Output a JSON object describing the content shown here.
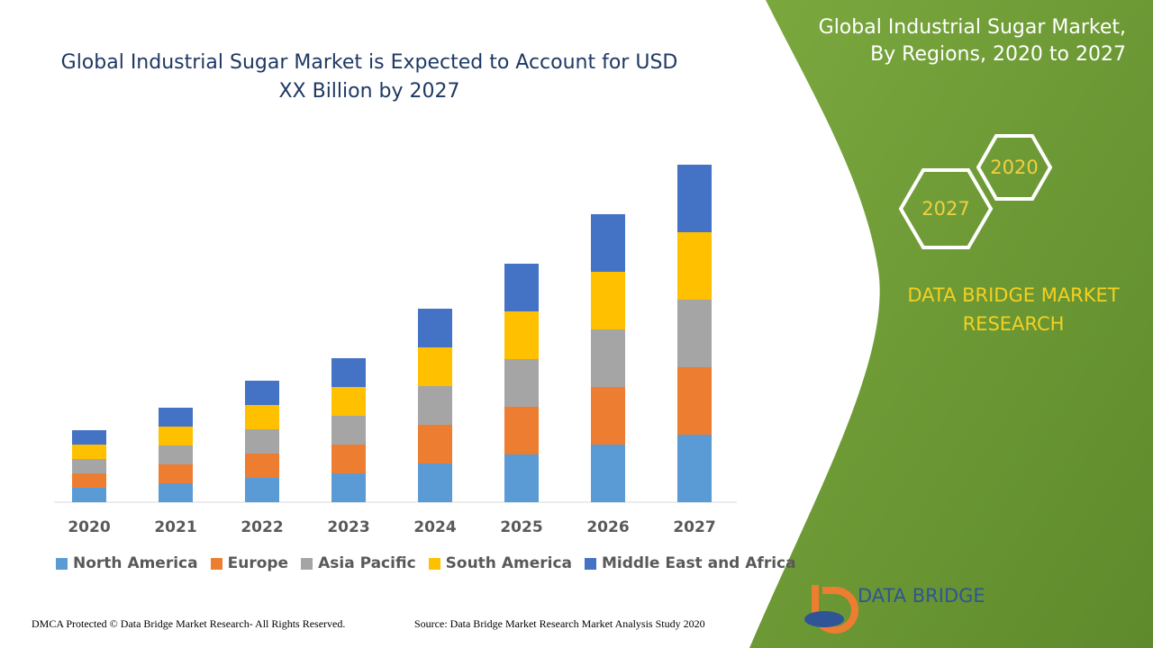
{
  "chart_data": {
    "type": "bar",
    "stacked": true,
    "title": "Global Industrial Sugar Market is Expected to Account for USD XX Billion by 2027",
    "categories": [
      "2020",
      "2021",
      "2022",
      "2023",
      "2024",
      "2025",
      "2026",
      "2027"
    ],
    "series": [
      {
        "name": "North America",
        "color": "#5b9bd5",
        "values": [
          16,
          21,
          27,
          32,
          43,
          53,
          64,
          75
        ]
      },
      {
        "name": "Europe",
        "color": "#ed7d31",
        "values": [
          16,
          21,
          27,
          32,
          43,
          53,
          64,
          75
        ]
      },
      {
        "name": "Asia Pacific",
        "color": "#a5a5a5",
        "values": [
          16,
          21,
          27,
          32,
          43,
          53,
          64,
          75
        ]
      },
      {
        "name": "South America",
        "color": "#ffc000",
        "values": [
          16,
          21,
          27,
          32,
          43,
          53,
          64,
          75
        ]
      },
      {
        "name": "Middle East and Africa",
        "color": "#4472c4",
        "values": [
          16,
          21,
          27,
          32,
          43,
          53,
          64,
          75
        ]
      }
    ]
  },
  "panel": {
    "title_line1": "Global Industrial Sugar Market,",
    "title_line2": "By Regions, 2020 to 2027",
    "hex_2020": "2020",
    "hex_2027": "2027",
    "brand_line1": "DATA BRIDGE MARKET",
    "brand_line2": "RESEARCH"
  },
  "logo": {
    "text": "DATA BRIDGE"
  },
  "footer": {
    "left": "DMCA Protected © Data Bridge Market Research- All Rights Reserved.",
    "right": "Source: Data Bridge Market Research Market Analysis Study 2020"
  }
}
